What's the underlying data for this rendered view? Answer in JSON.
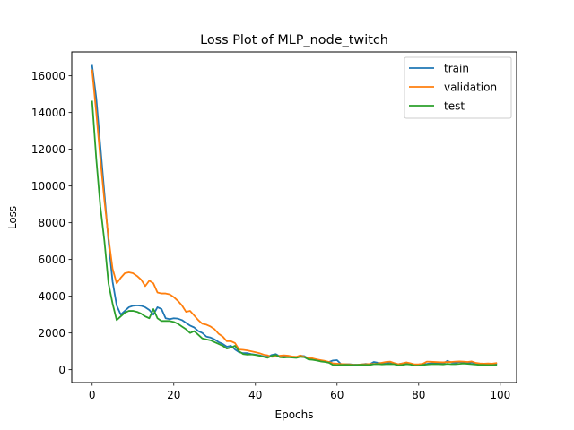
{
  "chart_data": {
    "type": "line",
    "title": "Loss Plot of MLP_node_twitch",
    "xlabel": "Epochs",
    "ylabel": "Loss",
    "xlim": [
      -5,
      104
    ],
    "ylim": [
      -700,
      17300
    ],
    "xticks": [
      0,
      20,
      40,
      60,
      80,
      100
    ],
    "yticks": [
      0,
      2000,
      4000,
      6000,
      8000,
      10000,
      12000,
      14000,
      16000
    ],
    "legend_position": "top-right",
    "grid": false,
    "series": [
      {
        "name": "train",
        "color": "#1f77b4",
        "points": [
          [
            0,
            16550
          ],
          [
            1,
            14800
          ],
          [
            2,
            12200
          ],
          [
            3,
            9600
          ],
          [
            4,
            7000
          ],
          [
            5,
            4800
          ],
          [
            6,
            3500
          ],
          [
            7,
            3000
          ],
          [
            8,
            3200
          ],
          [
            9,
            3400
          ],
          [
            10,
            3480
          ],
          [
            11,
            3500
          ],
          [
            12,
            3480
          ],
          [
            13,
            3400
          ],
          [
            14,
            3250
          ],
          [
            15,
            3000
          ],
          [
            16,
            3400
          ],
          [
            17,
            3300
          ],
          [
            18,
            2800
          ],
          [
            19,
            2750
          ],
          [
            20,
            2800
          ],
          [
            21,
            2780
          ],
          [
            22,
            2700
          ],
          [
            23,
            2550
          ],
          [
            24,
            2400
          ],
          [
            25,
            2300
          ],
          [
            26,
            2100
          ],
          [
            27,
            2000
          ],
          [
            28,
            1800
          ],
          [
            29,
            1750
          ],
          [
            30,
            1650
          ],
          [
            31,
            1500
          ],
          [
            32,
            1400
          ],
          [
            33,
            1250
          ],
          [
            34,
            1300
          ],
          [
            35,
            1100
          ],
          [
            36,
            950
          ],
          [
            37,
            900
          ],
          [
            38,
            900
          ],
          [
            39,
            850
          ],
          [
            40,
            820
          ],
          [
            41,
            780
          ],
          [
            42,
            720
          ],
          [
            43,
            700
          ],
          [
            44,
            800
          ],
          [
            45,
            850
          ],
          [
            46,
            720
          ],
          [
            47,
            700
          ],
          [
            48,
            720
          ],
          [
            49,
            700
          ],
          [
            50,
            680
          ],
          [
            51,
            760
          ],
          [
            52,
            740
          ],
          [
            53,
            600
          ],
          [
            54,
            580
          ],
          [
            55,
            550
          ],
          [
            56,
            500
          ],
          [
            57,
            450
          ],
          [
            58,
            420
          ],
          [
            59,
            500
          ],
          [
            60,
            520
          ],
          [
            61,
            300
          ],
          [
            62,
            300
          ],
          [
            63,
            300
          ],
          [
            64,
            280
          ],
          [
            65,
            270
          ],
          [
            66,
            280
          ],
          [
            67,
            320
          ],
          [
            68,
            300
          ],
          [
            69,
            420
          ],
          [
            70,
            380
          ],
          [
            71,
            350
          ],
          [
            72,
            380
          ],
          [
            73,
            400
          ],
          [
            74,
            330
          ],
          [
            75,
            300
          ],
          [
            76,
            340
          ],
          [
            77,
            360
          ],
          [
            78,
            300
          ],
          [
            79,
            280
          ],
          [
            80,
            260
          ],
          [
            81,
            300
          ],
          [
            82,
            320
          ],
          [
            83,
            350
          ],
          [
            84,
            360
          ],
          [
            85,
            340
          ],
          [
            86,
            330
          ],
          [
            87,
            480
          ],
          [
            88,
            400
          ],
          [
            89,
            380
          ],
          [
            90,
            420
          ],
          [
            91,
            380
          ],
          [
            92,
            380
          ],
          [
            93,
            400
          ],
          [
            94,
            330
          ],
          [
            95,
            330
          ],
          [
            96,
            320
          ],
          [
            97,
            300
          ],
          [
            98,
            310
          ],
          [
            99,
            330
          ]
        ]
      },
      {
        "name": "validation",
        "color": "#ff7f0e",
        "points": [
          [
            0,
            16300
          ],
          [
            1,
            14000
          ],
          [
            2,
            11500
          ],
          [
            3,
            9200
          ],
          [
            4,
            7200
          ],
          [
            5,
            5500
          ],
          [
            6,
            4700
          ],
          [
            7,
            5000
          ],
          [
            8,
            5250
          ],
          [
            9,
            5300
          ],
          [
            10,
            5250
          ],
          [
            11,
            5100
          ],
          [
            12,
            4900
          ],
          [
            13,
            4550
          ],
          [
            14,
            4850
          ],
          [
            15,
            4700
          ],
          [
            16,
            4200
          ],
          [
            17,
            4150
          ],
          [
            18,
            4150
          ],
          [
            19,
            4100
          ],
          [
            20,
            3950
          ],
          [
            21,
            3750
          ],
          [
            22,
            3500
          ],
          [
            23,
            3150
          ],
          [
            24,
            3200
          ],
          [
            25,
            2950
          ],
          [
            26,
            2700
          ],
          [
            27,
            2500
          ],
          [
            28,
            2450
          ],
          [
            29,
            2350
          ],
          [
            30,
            2200
          ],
          [
            31,
            1950
          ],
          [
            32,
            1800
          ],
          [
            33,
            1550
          ],
          [
            34,
            1550
          ],
          [
            35,
            1450
          ],
          [
            36,
            1100
          ],
          [
            37,
            1080
          ],
          [
            38,
            1050
          ],
          [
            39,
            1000
          ],
          [
            40,
            950
          ],
          [
            41,
            900
          ],
          [
            42,
            820
          ],
          [
            43,
            780
          ],
          [
            44,
            700
          ],
          [
            45,
            720
          ],
          [
            46,
            760
          ],
          [
            47,
            780
          ],
          [
            48,
            760
          ],
          [
            49,
            720
          ],
          [
            50,
            700
          ],
          [
            51,
            780
          ],
          [
            52,
            700
          ],
          [
            53,
            640
          ],
          [
            54,
            620
          ],
          [
            55,
            560
          ],
          [
            56,
            520
          ],
          [
            57,
            480
          ],
          [
            58,
            420
          ],
          [
            59,
            350
          ],
          [
            60,
            330
          ],
          [
            61,
            310
          ],
          [
            62,
            300
          ],
          [
            63,
            290
          ],
          [
            64,
            270
          ],
          [
            65,
            270
          ],
          [
            66,
            290
          ],
          [
            67,
            300
          ],
          [
            68,
            310
          ],
          [
            69,
            320
          ],
          [
            70,
            330
          ],
          [
            71,
            380
          ],
          [
            72,
            420
          ],
          [
            73,
            440
          ],
          [
            74,
            360
          ],
          [
            75,
            300
          ],
          [
            76,
            340
          ],
          [
            77,
            400
          ],
          [
            78,
            350
          ],
          [
            79,
            290
          ],
          [
            80,
            300
          ],
          [
            81,
            320
          ],
          [
            82,
            440
          ],
          [
            83,
            430
          ],
          [
            84,
            420
          ],
          [
            85,
            410
          ],
          [
            86,
            400
          ],
          [
            87,
            420
          ],
          [
            88,
            420
          ],
          [
            89,
            440
          ],
          [
            90,
            450
          ],
          [
            91,
            440
          ],
          [
            92,
            420
          ],
          [
            93,
            450
          ],
          [
            94,
            370
          ],
          [
            95,
            340
          ],
          [
            96,
            330
          ],
          [
            97,
            340
          ],
          [
            98,
            330
          ],
          [
            99,
            360
          ]
        ]
      },
      {
        "name": "test",
        "color": "#2ca02c",
        "points": [
          [
            0,
            14600
          ],
          [
            1,
            11500
          ],
          [
            2,
            8900
          ],
          [
            3,
            7000
          ],
          [
            4,
            4700
          ],
          [
            5,
            3600
          ],
          [
            6,
            2700
          ],
          [
            7,
            2900
          ],
          [
            8,
            3100
          ],
          [
            9,
            3200
          ],
          [
            10,
            3200
          ],
          [
            11,
            3150
          ],
          [
            12,
            3050
          ],
          [
            13,
            2900
          ],
          [
            14,
            2800
          ],
          [
            15,
            3300
          ],
          [
            16,
            2800
          ],
          [
            17,
            2650
          ],
          [
            18,
            2650
          ],
          [
            19,
            2650
          ],
          [
            20,
            2600
          ],
          [
            21,
            2500
          ],
          [
            22,
            2350
          ],
          [
            23,
            2200
          ],
          [
            24,
            2000
          ],
          [
            25,
            2100
          ],
          [
            26,
            1900
          ],
          [
            27,
            1700
          ],
          [
            28,
            1650
          ],
          [
            29,
            1600
          ],
          [
            30,
            1500
          ],
          [
            31,
            1400
          ],
          [
            32,
            1300
          ],
          [
            33,
            1150
          ],
          [
            34,
            1200
          ],
          [
            35,
            1300
          ],
          [
            36,
            1000
          ],
          [
            37,
            850
          ],
          [
            38,
            820
          ],
          [
            39,
            830
          ],
          [
            40,
            800
          ],
          [
            41,
            760
          ],
          [
            42,
            700
          ],
          [
            43,
            650
          ],
          [
            44,
            750
          ],
          [
            45,
            800
          ],
          [
            46,
            680
          ],
          [
            47,
            660
          ],
          [
            48,
            680
          ],
          [
            49,
            660
          ],
          [
            50,
            640
          ],
          [
            51,
            700
          ],
          [
            52,
            680
          ],
          [
            53,
            560
          ],
          [
            54,
            540
          ],
          [
            55,
            500
          ],
          [
            56,
            450
          ],
          [
            57,
            420
          ],
          [
            58,
            380
          ],
          [
            59,
            260
          ],
          [
            60,
            250
          ],
          [
            61,
            260
          ],
          [
            62,
            270
          ],
          [
            63,
            260
          ],
          [
            64,
            250
          ],
          [
            65,
            260
          ],
          [
            66,
            270
          ],
          [
            67,
            260
          ],
          [
            68,
            260
          ],
          [
            69,
            300
          ],
          [
            70,
            310
          ],
          [
            71,
            290
          ],
          [
            72,
            300
          ],
          [
            73,
            310
          ],
          [
            74,
            300
          ],
          [
            75,
            240
          ],
          [
            76,
            260
          ],
          [
            77,
            300
          ],
          [
            78,
            280
          ],
          [
            79,
            220
          ],
          [
            80,
            220
          ],
          [
            81,
            260
          ],
          [
            82,
            280
          ],
          [
            83,
            300
          ],
          [
            84,
            310
          ],
          [
            85,
            300
          ],
          [
            86,
            290
          ],
          [
            87,
            320
          ],
          [
            88,
            300
          ],
          [
            89,
            300
          ],
          [
            90,
            320
          ],
          [
            91,
            340
          ],
          [
            92,
            320
          ],
          [
            93,
            300
          ],
          [
            94,
            280
          ],
          [
            95,
            260
          ],
          [
            96,
            260
          ],
          [
            97,
            250
          ],
          [
            98,
            250
          ],
          [
            99,
            260
          ]
        ]
      }
    ]
  }
}
